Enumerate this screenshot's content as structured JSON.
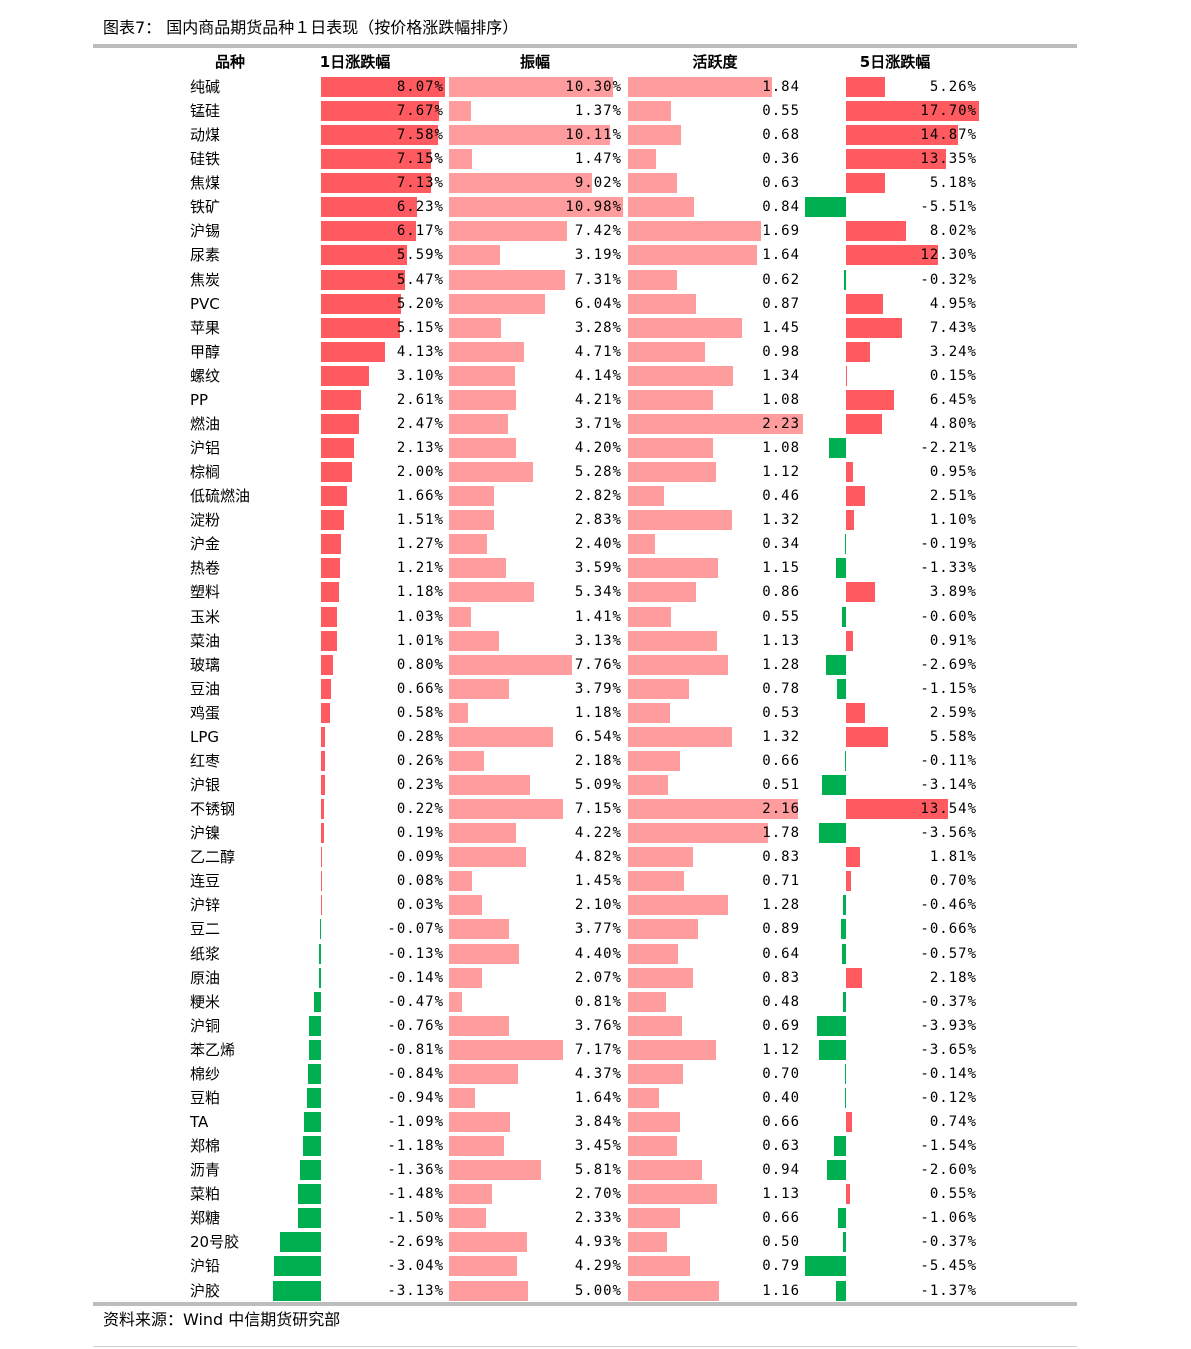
{
  "title": "图表7： 国内商品期货品种１日表现（按价格涨跌幅排序）",
  "source": "资料来源：Wind 中信期货研究部",
  "colors": {
    "up": "#ff5a5f",
    "light": "#ff9c9e",
    "down": "#00b050"
  },
  "chart_data": {
    "type": "table",
    "columns": [
      "品种",
      "1日涨跌幅",
      "振幅",
      "活跃度",
      "5日涨跌幅"
    ],
    "rows": [
      {
        "name": "纯碱",
        "chg1": "8.07%",
        "amp": "10.30%",
        "act": "1.84",
        "chg5": "5.26%"
      },
      {
        "name": "锰硅",
        "chg1": "7.67%",
        "amp": "1.37%",
        "act": "0.55",
        "chg5": "17.70%"
      },
      {
        "name": "动煤",
        "chg1": "7.58%",
        "amp": "10.11%",
        "act": "0.68",
        "chg5": "14.87%"
      },
      {
        "name": "硅铁",
        "chg1": "7.15%",
        "amp": "1.47%",
        "act": "0.36",
        "chg5": "13.35%"
      },
      {
        "name": "焦煤",
        "chg1": "7.13%",
        "amp": "9.02%",
        "act": "0.63",
        "chg5": "5.18%"
      },
      {
        "name": "铁矿",
        "chg1": "6.23%",
        "amp": "10.98%",
        "act": "0.84",
        "chg5": "-5.51%"
      },
      {
        "name": "沪锡",
        "chg1": "6.17%",
        "amp": "7.42%",
        "act": "1.69",
        "chg5": "8.02%"
      },
      {
        "name": "尿素",
        "chg1": "5.59%",
        "amp": "3.19%",
        "act": "1.64",
        "chg5": "12.30%"
      },
      {
        "name": "焦炭",
        "chg1": "5.47%",
        "amp": "7.31%",
        "act": "0.62",
        "chg5": "-0.32%"
      },
      {
        "name": "PVC",
        "chg1": "5.20%",
        "amp": "6.04%",
        "act": "0.87",
        "chg5": "4.95%"
      },
      {
        "name": "苹果",
        "chg1": "5.15%",
        "amp": "3.28%",
        "act": "1.45",
        "chg5": "7.43%"
      },
      {
        "name": "甲醇",
        "chg1": "4.13%",
        "amp": "4.71%",
        "act": "0.98",
        "chg5": "3.24%"
      },
      {
        "name": "螺纹",
        "chg1": "3.10%",
        "amp": "4.14%",
        "act": "1.34",
        "chg5": "0.15%"
      },
      {
        "name": "PP",
        "chg1": "2.61%",
        "amp": "4.21%",
        "act": "1.08",
        "chg5": "6.45%"
      },
      {
        "name": "燃油",
        "chg1": "2.47%",
        "amp": "3.71%",
        "act": "2.23",
        "chg5": "4.80%"
      },
      {
        "name": "沪铝",
        "chg1": "2.13%",
        "amp": "4.20%",
        "act": "1.08",
        "chg5": "-2.21%"
      },
      {
        "name": "棕榈",
        "chg1": "2.00%",
        "amp": "5.28%",
        "act": "1.12",
        "chg5": "0.95%"
      },
      {
        "name": "低硫燃油",
        "chg1": "1.66%",
        "amp": "2.82%",
        "act": "0.46",
        "chg5": "2.51%"
      },
      {
        "name": "淀粉",
        "chg1": "1.51%",
        "amp": "2.83%",
        "act": "1.32",
        "chg5": "1.10%"
      },
      {
        "name": "沪金",
        "chg1": "1.27%",
        "amp": "2.40%",
        "act": "0.34",
        "chg5": "-0.19%"
      },
      {
        "name": "热卷",
        "chg1": "1.21%",
        "amp": "3.59%",
        "act": "1.15",
        "chg5": "-1.33%"
      },
      {
        "name": "塑料",
        "chg1": "1.18%",
        "amp": "5.34%",
        "act": "0.86",
        "chg5": "3.89%"
      },
      {
        "name": "玉米",
        "chg1": "1.03%",
        "amp": "1.41%",
        "act": "0.55",
        "chg5": "-0.60%"
      },
      {
        "name": "菜油",
        "chg1": "1.01%",
        "amp": "3.13%",
        "act": "1.13",
        "chg5": "0.91%"
      },
      {
        "name": "玻璃",
        "chg1": "0.80%",
        "amp": "7.76%",
        "act": "1.28",
        "chg5": "-2.69%"
      },
      {
        "name": "豆油",
        "chg1": "0.66%",
        "amp": "3.79%",
        "act": "0.78",
        "chg5": "-1.15%"
      },
      {
        "name": "鸡蛋",
        "chg1": "0.58%",
        "amp": "1.18%",
        "act": "0.53",
        "chg5": "2.59%"
      },
      {
        "name": "LPG",
        "chg1": "0.28%",
        "amp": "6.54%",
        "act": "1.32",
        "chg5": "5.58%"
      },
      {
        "name": "红枣",
        "chg1": "0.26%",
        "amp": "2.18%",
        "act": "0.66",
        "chg5": "-0.11%"
      },
      {
        "name": "沪银",
        "chg1": "0.23%",
        "amp": "5.09%",
        "act": "0.51",
        "chg5": "-3.14%"
      },
      {
        "name": "不锈钢",
        "chg1": "0.22%",
        "amp": "7.15%",
        "act": "2.16",
        "chg5": "13.54%"
      },
      {
        "name": "沪镍",
        "chg1": "0.19%",
        "amp": "4.22%",
        "act": "1.78",
        "chg5": "-3.56%"
      },
      {
        "name": "乙二醇",
        "chg1": "0.09%",
        "amp": "4.82%",
        "act": "0.83",
        "chg5": "1.81%"
      },
      {
        "name": "连豆",
        "chg1": "0.08%",
        "amp": "1.45%",
        "act": "0.71",
        "chg5": "0.70%"
      },
      {
        "name": "沪锌",
        "chg1": "0.03%",
        "amp": "2.10%",
        "act": "1.28",
        "chg5": "-0.46%"
      },
      {
        "name": "豆二",
        "chg1": "-0.07%",
        "amp": "3.77%",
        "act": "0.89",
        "chg5": "-0.66%"
      },
      {
        "name": "纸浆",
        "chg1": "-0.13%",
        "amp": "4.40%",
        "act": "0.64",
        "chg5": "-0.57%"
      },
      {
        "name": "原油",
        "chg1": "-0.14%",
        "amp": "2.07%",
        "act": "0.83",
        "chg5": "2.18%"
      },
      {
        "name": "粳米",
        "chg1": "-0.47%",
        "amp": "0.81%",
        "act": "0.48",
        "chg5": "-0.37%"
      },
      {
        "name": "沪铜",
        "chg1": "-0.76%",
        "amp": "3.76%",
        "act": "0.69",
        "chg5": "-3.93%"
      },
      {
        "name": "苯乙烯",
        "chg1": "-0.81%",
        "amp": "7.17%",
        "act": "1.12",
        "chg5": "-3.65%"
      },
      {
        "name": "棉纱",
        "chg1": "-0.84%",
        "amp": "4.37%",
        "act": "0.70",
        "chg5": "-0.14%"
      },
      {
        "name": "豆粕",
        "chg1": "-0.94%",
        "amp": "1.64%",
        "act": "0.40",
        "chg5": "-0.12%"
      },
      {
        "name": "TA",
        "chg1": "-1.09%",
        "amp": "3.84%",
        "act": "0.66",
        "chg5": "0.74%"
      },
      {
        "name": "郑棉",
        "chg1": "-1.18%",
        "amp": "3.45%",
        "act": "0.63",
        "chg5": "-1.54%"
      },
      {
        "name": "沥青",
        "chg1": "-1.36%",
        "amp": "5.81%",
        "act": "0.94",
        "chg5": "-2.60%"
      },
      {
        "name": "菜粕",
        "chg1": "-1.48%",
        "amp": "2.70%",
        "act": "1.13",
        "chg5": "0.55%"
      },
      {
        "name": "郑糖",
        "chg1": "-1.50%",
        "amp": "2.33%",
        "act": "0.66",
        "chg5": "-1.06%"
      },
      {
        "name": "20号胶",
        "chg1": "-2.69%",
        "amp": "4.93%",
        "act": "0.50",
        "chg5": "-0.37%"
      },
      {
        "name": "沪铅",
        "chg1": "-3.04%",
        "amp": "4.29%",
        "act": "0.79",
        "chg5": "-5.45%"
      },
      {
        "name": "沪胶",
        "chg1": "-3.13%",
        "amp": "5.00%",
        "act": "1.16",
        "chg5": "-1.37%"
      }
    ]
  }
}
